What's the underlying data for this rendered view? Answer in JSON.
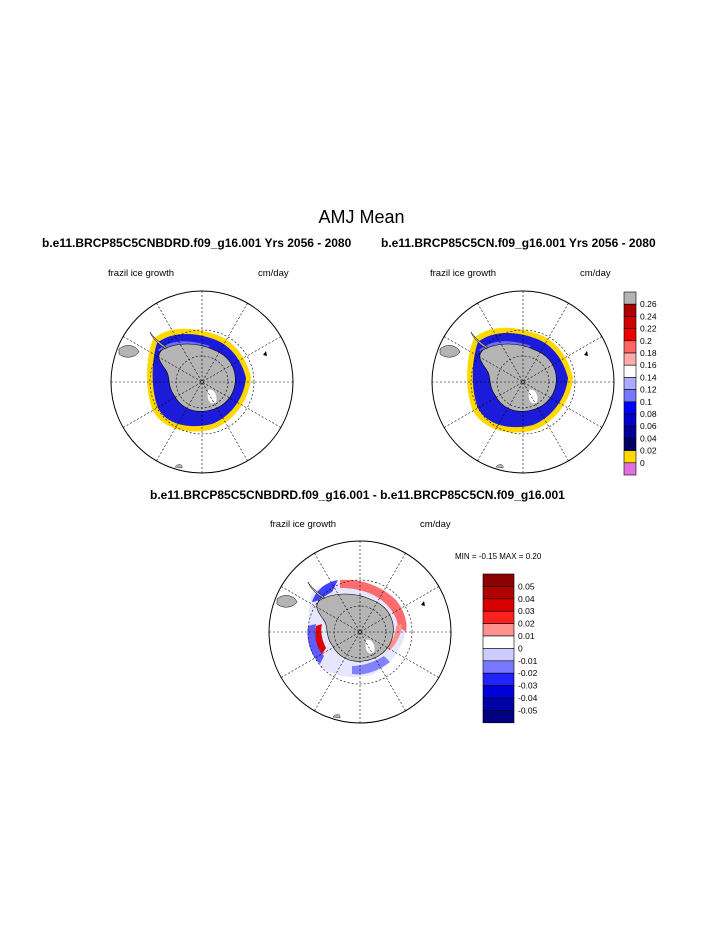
{
  "title": "AMJ Mean",
  "panels": {
    "left": {
      "title": "b.e11.BRCP85C5CNBDRD.f09_g16.001  Yrs 2056 - 2080",
      "variable": "frazil ice growth",
      "units": "cm/day"
    },
    "right": {
      "title": "b.e11.BRCP85C5CN.f09_g16.001  Yrs 2056 - 2080",
      "variable": "frazil ice growth",
      "units": "cm/day"
    },
    "diff": {
      "title": "b.e11.BRCP85C5CNBDRD.f09_g16.001 - b.e11.BRCP85C5CN.f09_g16.001",
      "variable": "frazil ice growth",
      "units": "cm/day",
      "minmax": "MIN =  -0.15 MAX =   0.20"
    }
  },
  "colorbar_main": {
    "labels": [
      "0.26",
      "0.24",
      "0.22",
      "0.2",
      "0.18",
      "0.16",
      "0.14",
      "0.12",
      "0.1",
      "0.08",
      "0.06",
      "0.04",
      "0.02",
      "0"
    ],
    "colors": [
      "#b4b4b4",
      "#aa0000",
      "#d20000",
      "#f00000",
      "#ff6666",
      "#ffaaaa",
      "#ffffff",
      "#aaaaff",
      "#7777ff",
      "#0000ff",
      "#0000cc",
      "#000099",
      "#000066",
      "#ffd800",
      "#e070e0"
    ]
  },
  "colorbar_diff": {
    "labels": [
      "0.05",
      "0.04",
      "0.03",
      "0.02",
      "0.01",
      "0",
      "-0.01",
      "-0.02",
      "-0.03",
      "-0.04",
      "-0.05"
    ],
    "colors": [
      "#8b0000",
      "#b00000",
      "#d80000",
      "#ff2020",
      "#ff9090",
      "#ffffff",
      "#ccccff",
      "#7777ff",
      "#2222ff",
      "#0000d8",
      "#0000a8",
      "#000080"
    ]
  }
}
